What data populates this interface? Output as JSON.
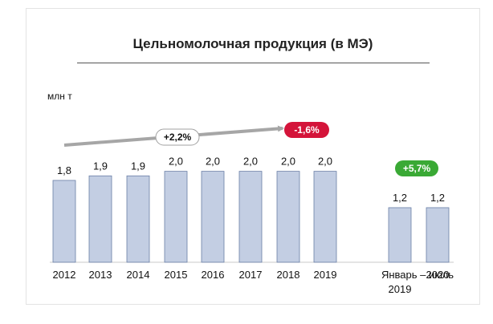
{
  "chart_data": {
    "type": "bar",
    "title": "Цельномолочная продукция (в МЭ)",
    "unit_label": "млн т",
    "categories": [
      [
        "2012"
      ],
      [
        "2013"
      ],
      [
        "2014"
      ],
      [
        "2015"
      ],
      [
        "2016"
      ],
      [
        "2017"
      ],
      [
        "2018"
      ],
      [
        "2019"
      ],
      [
        "Январь – июль",
        "2019"
      ],
      [
        "2020"
      ]
    ],
    "values": [
      1.8,
      1.9,
      1.9,
      2.0,
      2.0,
      2.0,
      2.0,
      2.0,
      1.2,
      1.2
    ],
    "value_labels": [
      "1,8",
      "1,9",
      "1,9",
      "2,0",
      "2,0",
      "2,0",
      "2,0",
      "2,0",
      "1,2",
      "1,2"
    ],
    "ylim": [
      0,
      2.4
    ],
    "grid": false,
    "annotations": [
      {
        "text": "+2,2%",
        "color": "#ffffff",
        "text_color": "#111111",
        "border": "#a0a0a0",
        "type": "trend"
      },
      {
        "text": "-1,6%",
        "color": "#d4143a",
        "text_color": "#ffffff",
        "type": "change"
      },
      {
        "text": "+5,7%",
        "color": "#3aa935",
        "text_color": "#ffffff",
        "type": "change"
      }
    ],
    "colors": {
      "bar_fill": "#c3cee3",
      "bar_stroke": "#6a7fa6",
      "arrow": "#a6a6a6"
    }
  }
}
